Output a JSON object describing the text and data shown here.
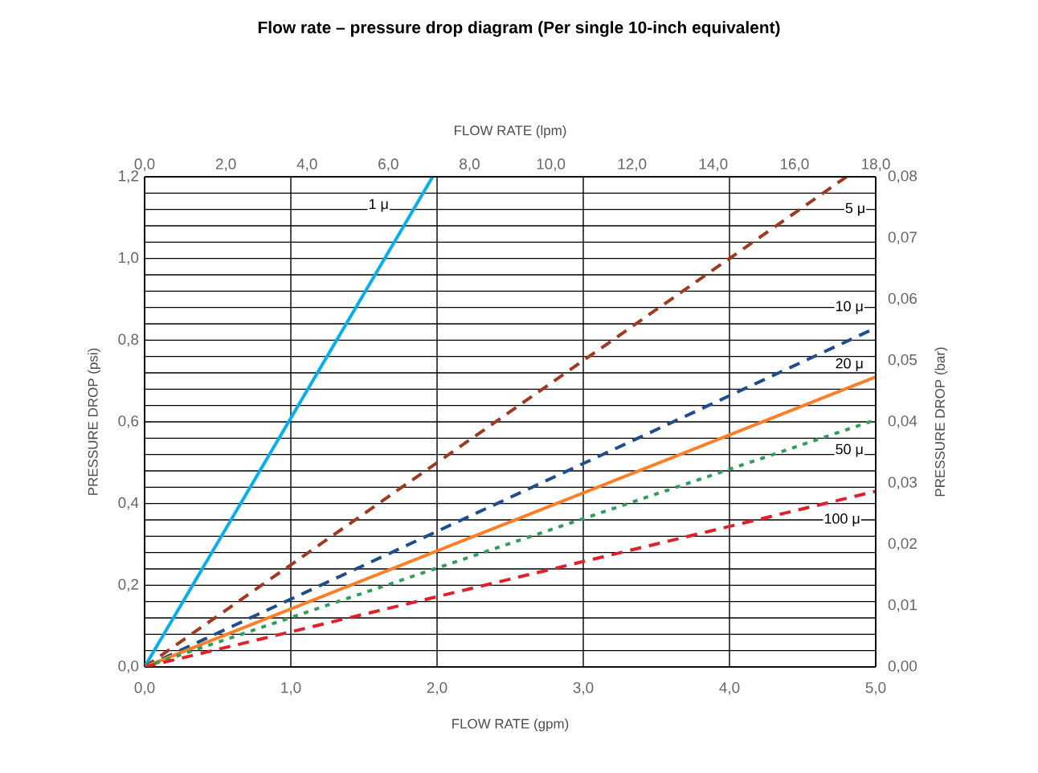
{
  "chart_data": {
    "type": "line",
    "title": "Flow rate – pressure drop diagram (Per single 10-inch equivalent)",
    "xlabel": "FLOW  RATE  (gpm)",
    "x2label": "FLOW  RATE  (lpm)",
    "ylabel": "PRESSURE  DROP  (psi)",
    "y2label": "PRESSURE  DROP  (bar)",
    "xlim": [
      0,
      5
    ],
    "ylim": [
      0,
      1.2
    ],
    "x2lim": [
      0,
      18
    ],
    "y2lim": [
      0,
      0.08
    ],
    "xticks": [
      {
        "value": 0,
        "label": "0,0"
      },
      {
        "value": 1,
        "label": "1,0"
      },
      {
        "value": 2,
        "label": "2,0"
      },
      {
        "value": 3,
        "label": "3,0"
      },
      {
        "value": 4,
        "label": "4,0"
      },
      {
        "value": 5,
        "label": "5,0"
      }
    ],
    "yticks": [
      {
        "value": 0,
        "label": "0,0"
      },
      {
        "value": 0.2,
        "label": "0,2"
      },
      {
        "value": 0.4,
        "label": "0,4"
      },
      {
        "value": 0.6,
        "label": "0,6"
      },
      {
        "value": 0.8,
        "label": "0,8"
      },
      {
        "value": 1.0,
        "label": "1,0"
      },
      {
        "value": 1.2,
        "label": "1,2"
      }
    ],
    "x2ticks": [
      {
        "value": 0,
        "label": "0,0"
      },
      {
        "value": 2,
        "label": "2,0"
      },
      {
        "value": 4,
        "label": "4,0"
      },
      {
        "value": 6,
        "label": "6,0"
      },
      {
        "value": 8,
        "label": "8,0"
      },
      {
        "value": 10,
        "label": "10,0"
      },
      {
        "value": 12,
        "label": "12,0"
      },
      {
        "value": 14,
        "label": "14,0"
      },
      {
        "value": 16,
        "label": "16,0"
      },
      {
        "value": 18,
        "label": "18,0"
      }
    ],
    "y2ticks": [
      {
        "value": 0,
        "label": "0,00"
      },
      {
        "value": 0.01,
        "label": "0,01"
      },
      {
        "value": 0.02,
        "label": "0,02"
      },
      {
        "value": 0.03,
        "label": "0,03"
      },
      {
        "value": 0.04,
        "label": "0,04"
      },
      {
        "value": 0.05,
        "label": "0,05"
      },
      {
        "value": 0.06,
        "label": "0,06"
      },
      {
        "value": 0.07,
        "label": "0,07"
      },
      {
        "value": 0.08,
        "label": "0,08"
      }
    ],
    "grid": true,
    "marker": "none",
    "series": [
      {
        "color": "#00b0f0",
        "line_style": "solid",
        "x": [
          0,
          1.97
        ],
        "values": [
          0,
          1.2
        ]
      },
      {
        "color": "#a0391f",
        "line_style": "dashed",
        "x": [
          0,
          4.8
        ],
        "values": [
          0,
          1.2
        ]
      },
      {
        "color": "#1f4e8c",
        "line_style": "dashed",
        "x": [
          0,
          5
        ],
        "values": [
          0,
          0.83
        ]
      },
      {
        "color": "#ff7f27",
        "line_style": "solid",
        "x": [
          0,
          5
        ],
        "values": [
          0,
          0.71
        ]
      },
      {
        "color": "#2e9e5b",
        "line_style": "dotted",
        "x": [
          0,
          5
        ],
        "values": [
          0,
          0.605
        ]
      },
      {
        "color": "#e0202a",
        "line_style": "dashed",
        "x": [
          0,
          5
        ],
        "values": [
          0,
          0.43
        ]
      }
    ],
    "annotations": [
      {
        "text": "1 μ",
        "x": 1.6,
        "y": 1.13
      },
      {
        "text": "5 μ",
        "x": 4.86,
        "y": 1.12
      },
      {
        "text": "10 μ",
        "x": 4.82,
        "y": 0.88
      },
      {
        "text": "20 μ",
        "x": 4.82,
        "y": 0.74
      },
      {
        "text": "50 μ",
        "x": 4.82,
        "y": 0.53
      },
      {
        "text": "100 μ",
        "x": 4.77,
        "y": 0.36
      }
    ]
  }
}
